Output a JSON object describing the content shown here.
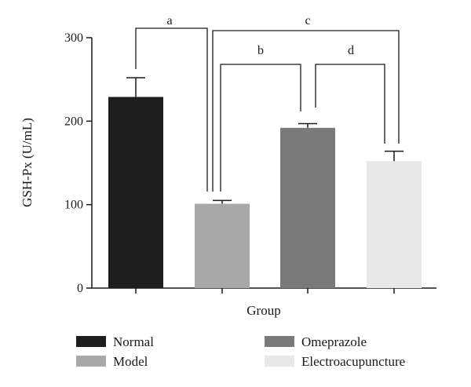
{
  "chart_data": {
    "type": "bar",
    "categories": [
      "Normal",
      "Model",
      "Omeprazole",
      "Electroacupuncture"
    ],
    "values": [
      229,
      101,
      192,
      152
    ],
    "errors": [
      23,
      4,
      5,
      12
    ],
    "colors": [
      "#1e1e1e",
      "#a8a8a8",
      "#7a7a7a",
      "#e8e8e8"
    ],
    "xlabel": "Group",
    "ylabel": "GSH-Px (U/mL)",
    "ylim": [
      0,
      300
    ],
    "yticks": [
      0,
      100,
      200,
      300
    ],
    "grid": false,
    "legend": {
      "position": "bottom",
      "entries": [
        "Normal",
        "Model",
        "Omeprazole",
        "Electroacupuncture"
      ]
    },
    "significance": [
      {
        "label": "a",
        "from": 0,
        "to": 1
      },
      {
        "label": "b",
        "from": 1,
        "to": 2
      },
      {
        "label": "c",
        "from": 1,
        "to": 3
      },
      {
        "label": "d",
        "from": 2,
        "to": 3
      }
    ]
  }
}
